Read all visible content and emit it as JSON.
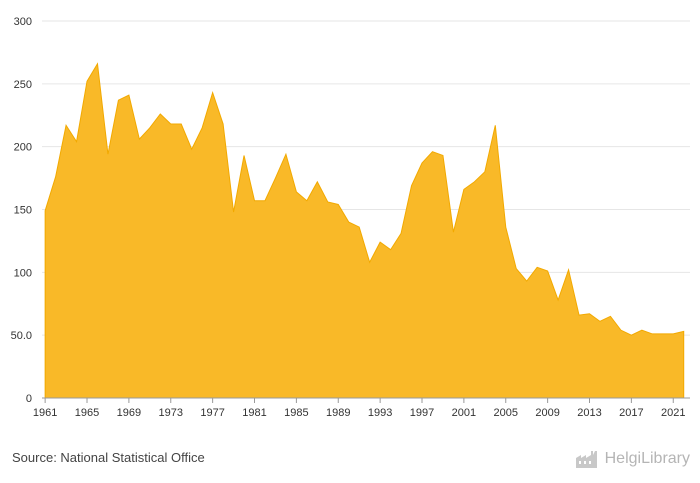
{
  "chart_data": {
    "type": "area",
    "title": "",
    "xlabel": "",
    "ylabel": "",
    "ylim": [
      0,
      300
    ],
    "grid": true,
    "legend": "none",
    "color": "#F9B928",
    "y_ticks": [
      "0",
      "50.0",
      "100",
      "150",
      "200",
      "250",
      "300"
    ],
    "x_ticks": [
      "1961",
      "1965",
      "1969",
      "1973",
      "1977",
      "1981",
      "1985",
      "1989",
      "1993",
      "1997",
      "2001",
      "2005",
      "2009",
      "2013",
      "2017",
      "2021"
    ],
    "x": [
      1961,
      1962,
      1963,
      1964,
      1965,
      1966,
      1967,
      1968,
      1969,
      1970,
      1971,
      1972,
      1973,
      1974,
      1975,
      1976,
      1977,
      1978,
      1979,
      1980,
      1981,
      1982,
      1983,
      1984,
      1985,
      1986,
      1987,
      1988,
      1989,
      1990,
      1991,
      1992,
      1993,
      1994,
      1995,
      1996,
      1997,
      1998,
      1999,
      2000,
      2001,
      2002,
      2003,
      2004,
      2005,
      2006,
      2007,
      2008,
      2009,
      2010,
      2011,
      2012,
      2013,
      2014,
      2015,
      2016,
      2017,
      2018,
      2019,
      2020,
      2021,
      2022
    ],
    "values": [
      149,
      176,
      217,
      204,
      252,
      266,
      194,
      237,
      241,
      206,
      215,
      226,
      218,
      218,
      198,
      215,
      243,
      218,
      148,
      193,
      157,
      157,
      175,
      194,
      164,
      157,
      172,
      156,
      154,
      140,
      136,
      108,
      124,
      118,
      131,
      169,
      187,
      196,
      193,
      132,
      166,
      172,
      180,
      217,
      136,
      103,
      93,
      104,
      101,
      78,
      102,
      66,
      67,
      61,
      65,
      54,
      50,
      54,
      51,
      51,
      51,
      53
    ]
  },
  "footer": {
    "source": "Source: National Statistical Office",
    "logo_text": "HelgiLibrary",
    "logo_icon": "factory-icon"
  }
}
